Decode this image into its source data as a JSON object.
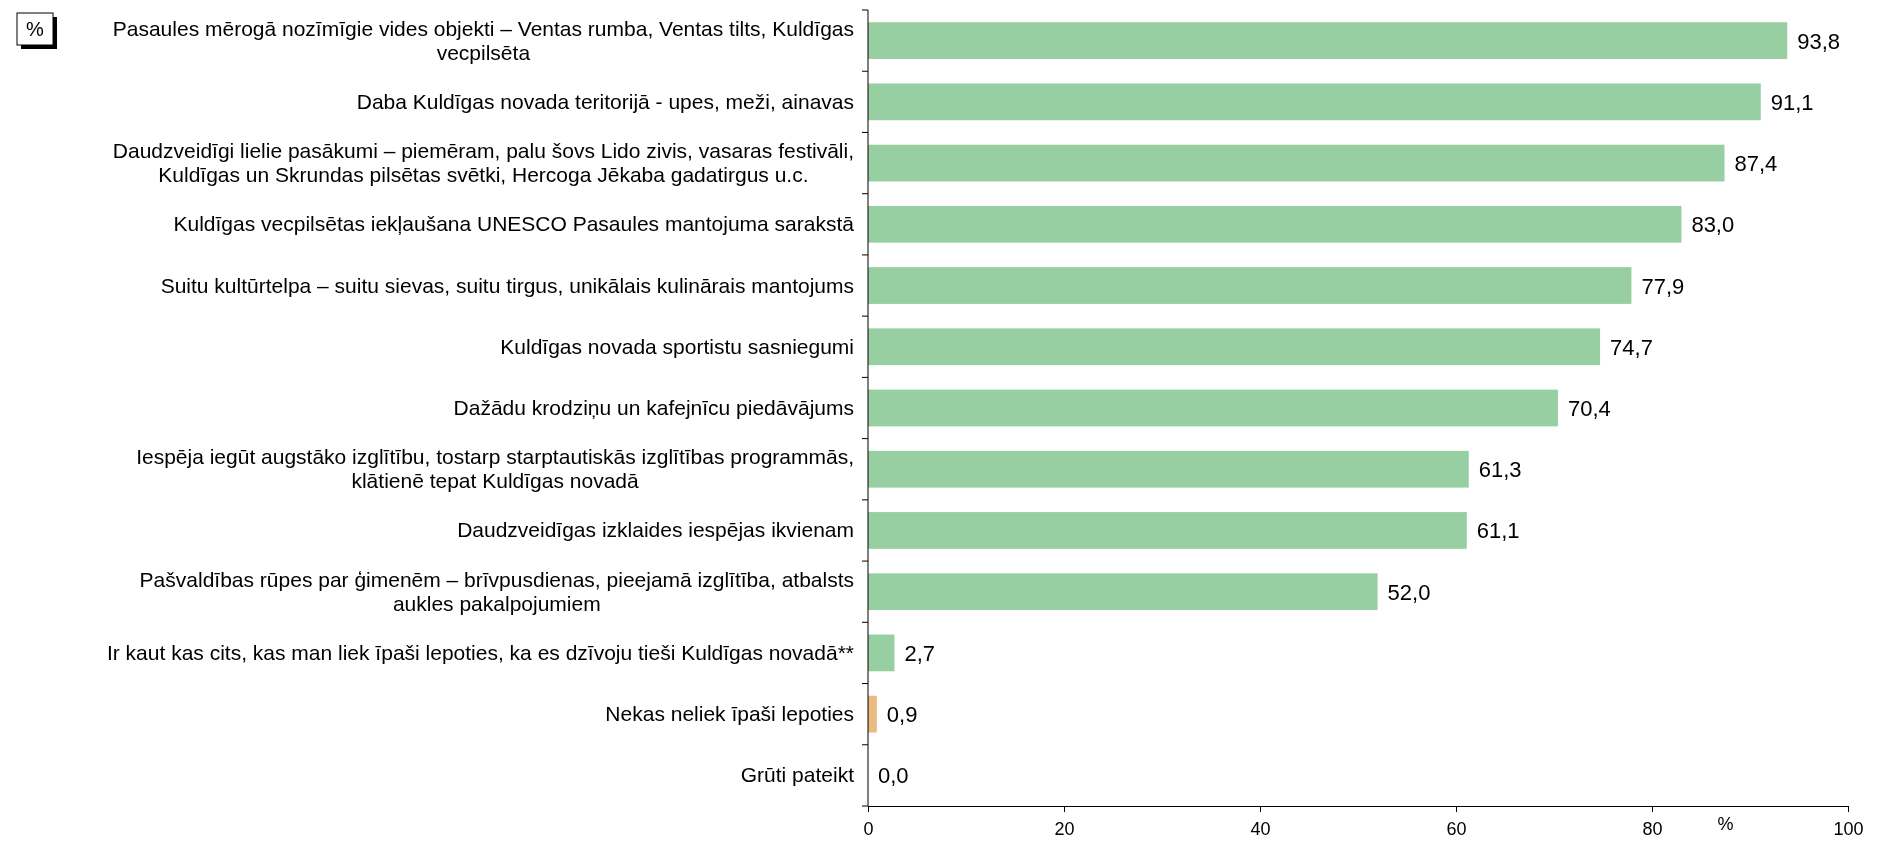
{
  "chart_data": {
    "type": "bar",
    "orientation": "horizontal",
    "xlabel": "%",
    "annotations": [
      "%"
    ],
    "categories": [
      "Pasaules mērogā nozīmīgie vides objekti – Ventas rumba, Ventas tilts, Kuldīgas vecpilsēta",
      "Daba Kuldīgas novada teritorijā - upes, meži, ainavas",
      "Daudzveidīgi lielie pasākumi – piemēram, palu šovs Lido zivis, vasaras festivāli, Kuldīgas un Skrundas pilsētas svētki, Hercoga Jēkaba gadatirgus u.c.",
      "Kuldīgas vecpilsētas iekļaušana UNESCO Pasaules mantojuma sarakstā",
      "Suitu kultūrtelpa – suitu sievas, suitu tirgus, unikālais kulinārais mantojums",
      "Kuldīgas novada sportistu sasniegumi",
      "Dažādu krodziņu un kafejnīcu piedāvājums",
      "Iespēja iegūt augstāko izglītību, tostarp starptautiskās izglītības programmās, klātienē tepat Kuldīgas novadā",
      "Daudzveidīgas izklaides iespējas ikvienam",
      "Pašvaldības rūpes par ģimenēm – brīvpusdienas, pieejamā izglītība, atbalsts aukles pakalpojumiem",
      "Ir kaut kas cits, kas man liek īpaši lepoties, ka es dzīvoju tieši Kuldīgas novadā**",
      "Nekas neliek īpaši lepoties",
      "Grūti pateikt"
    ],
    "values": [
      93.8,
      91.1,
      87.4,
      83.0,
      77.9,
      74.7,
      70.4,
      61.3,
      61.1,
      52.0,
      2.7,
      0.9,
      0.0
    ],
    "value_labels": [
      "93,8",
      "91,1",
      "87,4",
      "83,0",
      "77,9",
      "74,7",
      "70,4",
      "61,3",
      "61,1",
      "52,0",
      "2,7",
      "0,9",
      "0,0"
    ],
    "colors": [
      "#97cea2",
      "#97cea2",
      "#97cea2",
      "#97cea2",
      "#97cea2",
      "#97cea2",
      "#97cea2",
      "#97cea2",
      "#97cea2",
      "#97cea2",
      "#97cea2",
      "#eabb80",
      "#eabb80"
    ],
    "xlim": [
      0,
      100
    ],
    "xticks": [
      0,
      20,
      40,
      60,
      80,
      100
    ],
    "grid": false
  }
}
